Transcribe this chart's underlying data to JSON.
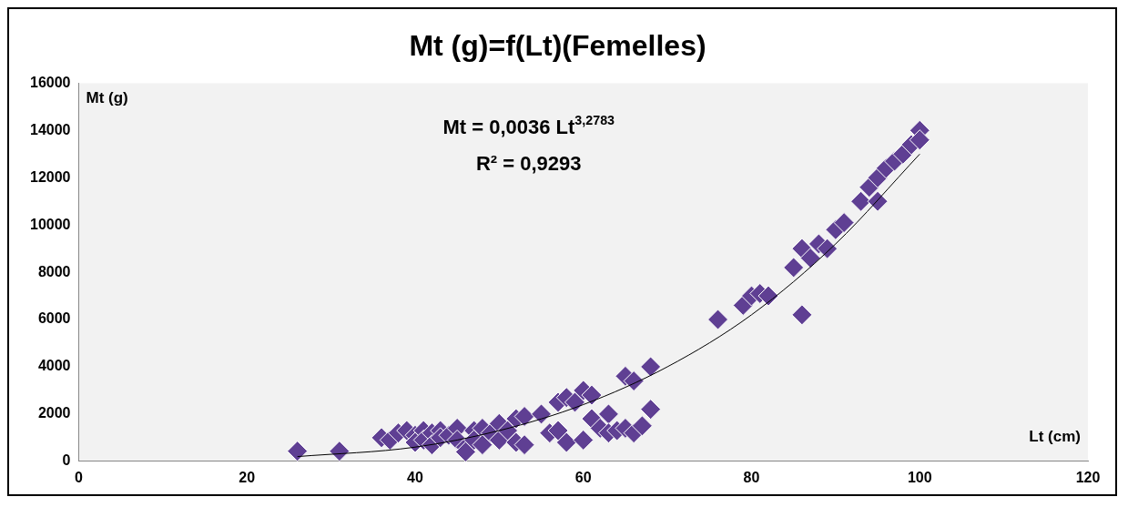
{
  "chart_data": {
    "type": "scatter",
    "title": "Mt (g)=f(Lt)(Femelles)",
    "xlabel": "Lt (cm)",
    "ylabel": "Mt (g)",
    "annotations": [
      "Mt = 0,0036 Lt$^{3,2783}$",
      "R² = 0,9293"
    ],
    "xlim": [
      0,
      120
    ],
    "xticks": [
      0,
      20,
      40,
      60,
      80,
      100,
      120
    ],
    "ylim": [
      0,
      16000
    ],
    "yticks": [
      0,
      2000,
      4000,
      6000,
      8000,
      10000,
      12000,
      14000,
      16000
    ],
    "grid": false,
    "legend": false,
    "series": [
      {
        "marker": "diamond",
        "color": "#5f3f93",
        "x": [
          26,
          31,
          36,
          37,
          38,
          39,
          40,
          40,
          41,
          41,
          42,
          42,
          43,
          43,
          44,
          45,
          45,
          46,
          46,
          47,
          47,
          48,
          48,
          49,
          50,
          50,
          51,
          52,
          52,
          53,
          53,
          55,
          56,
          57,
          57,
          58,
          58,
          59,
          60,
          60,
          61,
          61,
          62,
          63,
          63,
          64,
          65,
          65,
          66,
          66,
          67,
          68,
          68,
          76,
          79,
          80,
          81,
          82,
          85,
          86,
          86,
          87,
          88,
          89,
          90,
          91,
          93,
          94,
          95,
          95,
          96,
          97,
          98,
          99,
          100,
          100
        ],
        "values": [
          430,
          430,
          1000,
          900,
          1200,
          1300,
          1100,
          800,
          1300,
          900,
          1200,
          700,
          1300,
          1000,
          1100,
          1400,
          900,
          600,
          400,
          1300,
          900,
          1400,
          700,
          1200,
          1600,
          900,
          1300,
          1800,
          800,
          1900,
          700,
          2000,
          1200,
          1300,
          2500,
          800,
          2700,
          2500,
          3000,
          900,
          2800,
          1800,
          1400,
          2000,
          1200,
          1300,
          1400,
          3600,
          3400,
          1200,
          1500,
          2200,
          4000,
          6000,
          6600,
          7000,
          7100,
          7000,
          8200,
          9000,
          6200,
          8600,
          9200,
          9000,
          9800,
          10100,
          11000,
          11600,
          12000,
          11000,
          12400,
          12700,
          13000,
          13400,
          14000,
          13600
        ]
      },
      {
        "type": "line",
        "marker": "none",
        "color": "#000000",
        "x": [
          26,
          40,
          50,
          60,
          70,
          80,
          90,
          100
        ],
        "values": [
          200,
          600,
          1300,
          2400,
          4000,
          6200,
          9200,
          13000
        ]
      }
    ]
  }
}
